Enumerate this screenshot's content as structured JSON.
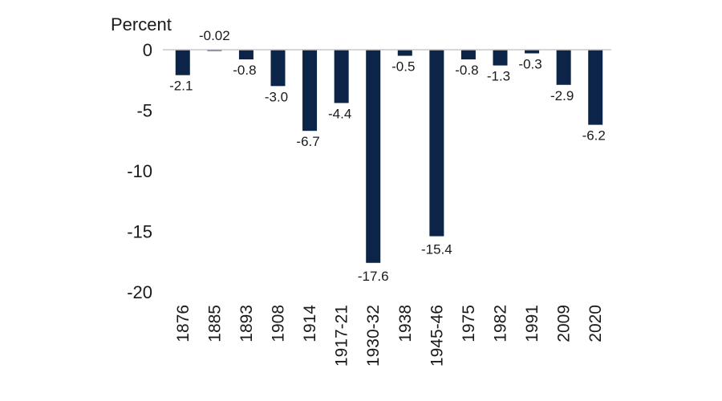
{
  "chart_data": {
    "type": "bar",
    "title": "",
    "ylabel": "Percent",
    "xlabel": "",
    "ylim": [
      -20,
      0
    ],
    "yticks": [
      0,
      -5,
      -10,
      -15,
      -20
    ],
    "grid": false,
    "bar_color": "#0b2447",
    "categories": [
      "1876",
      "1885",
      "1893",
      "1908",
      "1914",
      "1917-21",
      "1930-32",
      "1938",
      "1945-46",
      "1975",
      "1982",
      "1991",
      "2009",
      "2020"
    ],
    "values": [
      -2.1,
      -0.02,
      -0.8,
      -3.0,
      -6.7,
      -4.4,
      -17.6,
      -0.5,
      -15.4,
      -0.8,
      -1.3,
      -0.3,
      -2.9,
      -6.2
    ],
    "data_labels": [
      "-2.1",
      "-0.02",
      "-0.8",
      "-3.0",
      "-6.7",
      "-4.4",
      "-17.6",
      "-0.5",
      "-15.4",
      "-0.8",
      "-1.3",
      "-0.3",
      "-2.9",
      "-6.2"
    ]
  }
}
